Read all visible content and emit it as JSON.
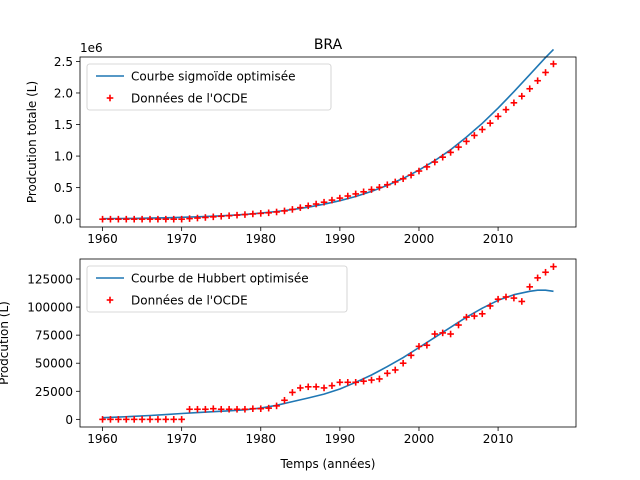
{
  "figure": {
    "title": "BRA",
    "xlabel": "Temps (années)"
  },
  "colors": {
    "line": "#1f77b4",
    "marker": "#ff0000",
    "axis": "#000000",
    "background": "#ffffff"
  },
  "chart_data": [
    {
      "type": "line",
      "title": "BRA",
      "xlabel": "",
      "ylabel": "Prodcution totale (L)",
      "offset_label": "1e6",
      "xlim": [
        1957.15,
        2019.85
      ],
      "ylim": [
        -124000,
        2570000
      ],
      "xticks": [
        1960,
        1970,
        1980,
        1990,
        2000,
        2010
      ],
      "xtick_labels": [
        "1960",
        "1970",
        "1980",
        "1990",
        "2000",
        "2010"
      ],
      "yticks": [
        0,
        500000,
        1000000,
        1500000,
        2000000,
        2500000
      ],
      "ytick_labels": [
        "0.0",
        "0.5",
        "1.0",
        "1.5",
        "2.0",
        "2.5"
      ],
      "grid": false,
      "legend": {
        "position": "top-left",
        "entries": [
          "Courbe sigmoïde optimisée",
          "Données de l'OCDE"
        ]
      },
      "series": [
        {
          "name": "Courbe sigmoïde optimisée",
          "kind": "line",
          "x": [
            1960,
            1962,
            1964,
            1966,
            1968,
            1970,
            1972,
            1974,
            1976,
            1978,
            1980,
            1982,
            1984,
            1986,
            1988,
            1990,
            1992,
            1994,
            1996,
            1998,
            2000,
            2002,
            2004,
            2006,
            2008,
            2010,
            2012,
            2014,
            2016,
            2017
          ],
          "y": [
            8000,
            10000,
            13000,
            17000,
            22000,
            29000,
            37000,
            47000,
            60000,
            76000,
            96000,
            121000,
            152000,
            190000,
            237000,
            293000,
            360000,
            440000,
            535000,
            646000,
            777000,
            928000,
            1100000,
            1300000,
            1520000,
            1760000,
            2020000,
            2290000,
            2560000,
            2690000
          ]
        },
        {
          "name": "Données de l'OCDE",
          "kind": "scatter",
          "x": [
            1960,
            1961,
            1962,
            1963,
            1964,
            1965,
            1966,
            1967,
            1968,
            1969,
            1970,
            1971,
            1972,
            1973,
            1974,
            1975,
            1976,
            1977,
            1978,
            1979,
            1980,
            1981,
            1982,
            1983,
            1984,
            1985,
            1986,
            1987,
            1988,
            1989,
            1990,
            1991,
            1992,
            1993,
            1994,
            1995,
            1996,
            1997,
            1998,
            1999,
            2000,
            2001,
            2002,
            2003,
            2004,
            2005,
            2006,
            2007,
            2008,
            2009,
            2010,
            2011,
            2012,
            2013,
            2014,
            2015,
            2016,
            2017
          ],
          "y": [
            0,
            0,
            0,
            0,
            0,
            0,
            0,
            0,
            0,
            0,
            0,
            9000,
            18000,
            27000,
            37000,
            46000,
            55000,
            64000,
            73000,
            83000,
            92000,
            101000,
            114000,
            131000,
            155000,
            183000,
            212000,
            240000,
            269000,
            302000,
            334000,
            367000,
            400000,
            434000,
            469000,
            505000,
            546000,
            590000,
            641000,
            698000,
            763000,
            829000,
            905000,
            982000,
            1058000,
            1142000,
            1233000,
            1327000,
            1421000,
            1521000,
            1629000,
            1736000,
            1844000,
            1949000,
            2067000,
            2194000,
            2325000,
            2460000
          ]
        }
      ]
    },
    {
      "type": "line",
      "title": "",
      "xlabel": "Temps (années)",
      "ylabel": "Prodcution (L)",
      "xlim": [
        1957.15,
        2019.85
      ],
      "ylim": [
        -6800,
        142800
      ],
      "xticks": [
        1960,
        1970,
        1980,
        1990,
        2000,
        2010
      ],
      "xtick_labels": [
        "1960",
        "1970",
        "1980",
        "1990",
        "2000",
        "2010"
      ],
      "yticks": [
        0,
        25000,
        50000,
        75000,
        100000,
        125000
      ],
      "ytick_labels": [
        "0",
        "25000",
        "50000",
        "75000",
        "100000",
        "125000"
      ],
      "grid": false,
      "legend": {
        "position": "top-left",
        "entries": [
          "Courbe de Hubbert optimisée",
          "Données de l'OCDE"
        ]
      },
      "series": [
        {
          "name": "Courbe de Hubbert optimisée",
          "kind": "line",
          "x": [
            1960,
            1962,
            1964,
            1966,
            1968,
            1970,
            1972,
            1974,
            1976,
            1978,
            1980,
            1982,
            1984,
            1986,
            1988,
            1990,
            1992,
            1994,
            1996,
            1998,
            2000,
            2002,
            2004,
            2006,
            2008,
            2010,
            2012,
            2014,
            2015,
            2016,
            2017
          ],
          "y": [
            1500,
            2000,
            2700,
            3400,
            4200,
            5200,
            6000,
            6800,
            7600,
            8500,
            10000,
            12500,
            15800,
            19000,
            22500,
            27000,
            33000,
            39500,
            47000,
            55000,
            64000,
            73000,
            82000,
            91000,
            99000,
            106000,
            111000,
            114000,
            115000,
            115000,
            114000
          ]
        },
        {
          "name": "Données de l'OCDE",
          "kind": "scatter",
          "x": [
            1960,
            1961,
            1962,
            1963,
            1964,
            1965,
            1966,
            1967,
            1968,
            1969,
            1970,
            1971,
            1972,
            1973,
            1974,
            1975,
            1976,
            1977,
            1978,
            1979,
            1980,
            1981,
            1982,
            1983,
            1984,
            1985,
            1986,
            1987,
            1988,
            1989,
            1990,
            1991,
            1992,
            1993,
            1994,
            1995,
            1996,
            1997,
            1998,
            1999,
            2000,
            2001,
            2002,
            2003,
            2004,
            2005,
            2006,
            2007,
            2008,
            2009,
            2010,
            2011,
            2012,
            2013,
            2014,
            2015,
            2016,
            2017
          ],
          "y": [
            0,
            0,
            0,
            0,
            0,
            0,
            0,
            0,
            0,
            0,
            0,
            9000,
            9000,
            9000,
            9500,
            9000,
            9000,
            9000,
            9000,
            9500,
            9500,
            10000,
            12000,
            17000,
            24000,
            28000,
            29000,
            29000,
            28000,
            30000,
            33000,
            33000,
            33000,
            34000,
            35000,
            36000,
            41000,
            44000,
            50000,
            57000,
            65000,
            66000,
            76000,
            77000,
            76000,
            84000,
            91000,
            92000,
            94000,
            101000,
            107000,
            109000,
            108000,
            105000,
            118000,
            126000,
            131000,
            136000
          ]
        }
      ]
    }
  ]
}
